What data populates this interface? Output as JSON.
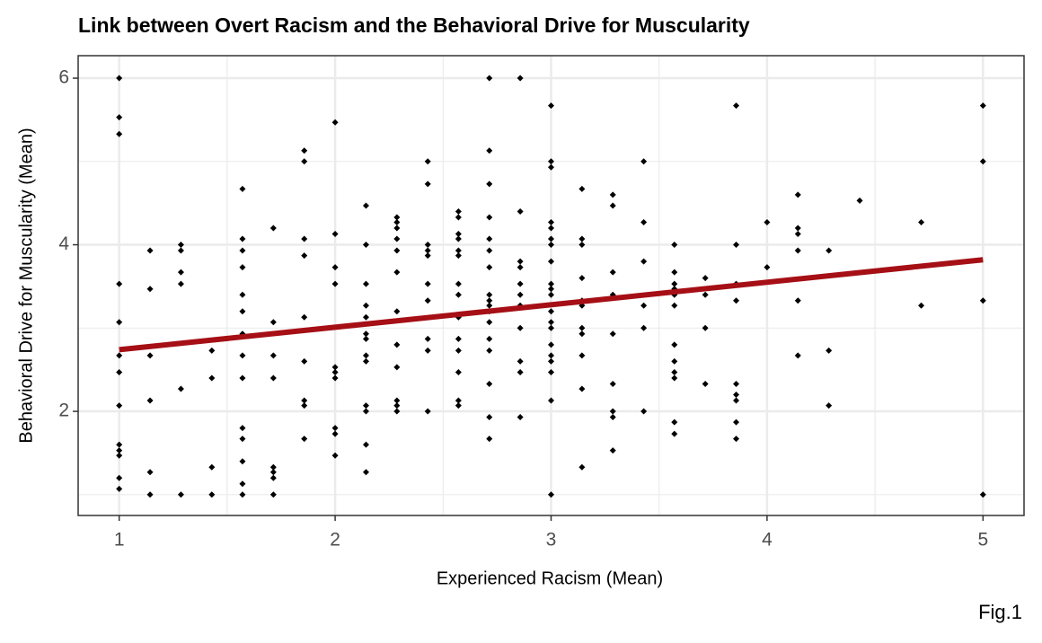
{
  "chart_data": {
    "type": "scatter",
    "title": "Link between Overt Racism and the Behavioral Drive for Muscularity",
    "x_label": "Experienced Racism (Mean)",
    "y_label": "Behavioral Drive for Muscularity (Mean)",
    "caption": "Fig.1",
    "xlim": [
      0.81,
      5.19
    ],
    "ylim": [
      0.75,
      6.27
    ],
    "xticks": [
      1,
      2,
      3,
      4,
      5
    ],
    "yticks": [
      2,
      4,
      6
    ],
    "xminor": [
      1.5,
      2.5,
      3.5,
      4.5
    ],
    "yminor": [
      1,
      3,
      5
    ],
    "grid": true,
    "color": "#000000",
    "x": [
      1,
      1,
      1,
      1,
      1,
      1,
      1,
      1,
      1,
      1,
      1,
      1,
      1,
      1.143,
      1.143,
      1.143,
      1.143,
      1.143,
      1.143,
      1.286,
      1.286,
      1.286,
      1.286,
      1.286,
      1.286,
      1.429,
      1.429,
      1.429,
      1.429,
      1.571,
      1.571,
      1.571,
      1.571,
      1.571,
      1.571,
      1.571,
      1.571,
      1.571,
      1.571,
      1.571,
      1.571,
      1.571,
      1.571,
      1.714,
      1.714,
      1.714,
      1.714,
      1.714,
      1.714,
      1.714,
      1.714,
      1.857,
      1.857,
      1.857,
      1.857,
      1.857,
      1.857,
      1.857,
      1.857,
      1.857,
      2,
      2,
      2,
      2,
      2,
      2,
      2,
      2,
      2,
      2,
      2.143,
      2.143,
      2.143,
      2.143,
      2.143,
      2.143,
      2.143,
      2.143,
      2.143,
      2.143,
      2.143,
      2.143,
      2.143,
      2.286,
      2.286,
      2.286,
      2.286,
      2.286,
      2.286,
      2.286,
      2.286,
      2.286,
      2.286,
      2.286,
      2.286,
      2.429,
      2.429,
      2.429,
      2.429,
      2.429,
      2.429,
      2.429,
      2.429,
      2.429,
      2.429,
      2.571,
      2.571,
      2.571,
      2.571,
      2.571,
      2.571,
      2.571,
      2.571,
      2.571,
      2.571,
      2.571,
      2.571,
      2.571,
      2.571,
      2.714,
      2.714,
      2.714,
      2.714,
      2.714,
      2.714,
      2.714,
      2.714,
      2.714,
      2.714,
      2.714,
      2.714,
      2.714,
      2.714,
      2.714,
      2.714,
      2.714,
      2.857,
      2.857,
      2.857,
      2.857,
      2.857,
      2.857,
      2.857,
      2.857,
      2.857,
      2.857,
      2.857,
      3,
      3,
      3,
      3,
      3,
      3,
      3,
      3,
      3,
      3,
      3,
      3,
      3,
      3,
      3,
      3,
      3,
      3,
      3,
      3,
      3.143,
      3.143,
      3.143,
      3.143,
      3.143,
      3.143,
      3.143,
      3.143,
      3.143,
      3.143,
      3.143,
      3.286,
      3.286,
      3.286,
      3.286,
      3.286,
      3.286,
      3.286,
      3.286,
      3.286,
      3.429,
      3.429,
      3.429,
      3.429,
      3.429,
      3.429,
      3.571,
      3.571,
      3.571,
      3.571,
      3.571,
      3.571,
      3.571,
      3.571,
      3.571,
      3.571,
      3.571,
      3.571,
      3.714,
      3.714,
      3.714,
      3.714,
      3.857,
      3.857,
      3.857,
      3.857,
      3.857,
      3.857,
      3.857,
      3.857,
      3.857,
      4,
      4,
      4.143,
      4.143,
      4.143,
      4.143,
      4.143,
      4.143,
      4.286,
      4.286,
      4.286,
      4.429,
      4.714,
      4.714,
      5,
      5,
      5,
      5
    ],
    "values": [
      6,
      5.53,
      5.33,
      3.53,
      3.07,
      2.67,
      2.47,
      2.07,
      1.6,
      1.53,
      1.47,
      1.2,
      1.07,
      3.93,
      3.47,
      2.67,
      2.13,
      1.27,
      1,
      4,
      3.93,
      3.67,
      3.53,
      2.27,
      1,
      2.73,
      2.4,
      1.33,
      1,
      4.67,
      4.07,
      3.93,
      3.73,
      3.4,
      3.2,
      2.93,
      2.67,
      2.4,
      1.8,
      1.67,
      1.4,
      1.13,
      1,
      4.2,
      3.07,
      2.67,
      2.4,
      1.33,
      1.27,
      1.2,
      1,
      5.13,
      5,
      4.07,
      3.87,
      3.13,
      2.6,
      2.13,
      2.07,
      1.67,
      5.47,
      4.13,
      3.73,
      3.53,
      2.53,
      2.47,
      2.4,
      1.8,
      1.73,
      1.47,
      4.47,
      4,
      3.53,
      3.27,
      3.13,
      2.93,
      2.87,
      2.67,
      2.6,
      2.07,
      2,
      1.6,
      1.27,
      4.33,
      4.27,
      4.2,
      4.07,
      3.93,
      3.67,
      3.2,
      2.8,
      2.53,
      2.13,
      2.07,
      2,
      5,
      4.73,
      4,
      3.93,
      3.87,
      3.53,
      3.33,
      2.87,
      2.73,
      2,
      4.4,
      4.33,
      4.13,
      4.07,
      3.93,
      3.87,
      3.53,
      3.4,
      3.13,
      2.87,
      2.73,
      2.47,
      2.13,
      2.07,
      6,
      5.13,
      4.73,
      4.33,
      4.07,
      3.93,
      3.73,
      3.4,
      3.33,
      3.27,
      3.2,
      3.07,
      2.87,
      2.73,
      2.33,
      1.93,
      1.67,
      6,
      4.4,
      3.8,
      3.73,
      3.53,
      3.4,
      3.27,
      3,
      2.6,
      2.47,
      1.93,
      5.67,
      5,
      4.93,
      4.27,
      4.2,
      4.07,
      4,
      3.8,
      3.53,
      3.47,
      3.4,
      3.2,
      3.07,
      3,
      2.8,
      2.67,
      2.6,
      2.47,
      2.13,
      1,
      4.67,
      4.07,
      4,
      3.6,
      3.33,
      3.27,
      3,
      2.93,
      2.67,
      2.27,
      1.33,
      4.6,
      4.47,
      3.67,
      3.4,
      2.93,
      2.33,
      2,
      1.93,
      1.53,
      5,
      4.27,
      3.8,
      3.27,
      3,
      2,
      4,
      3.67,
      3.53,
      3.47,
      3.4,
      3.27,
      2.8,
      2.6,
      2.47,
      2.4,
      1.87,
      1.73,
      3.6,
      3.4,
      3,
      2.33,
      5.67,
      4,
      3.53,
      3.33,
      2.33,
      2.2,
      2.13,
      1.87,
      1.67,
      4.27,
      3.73,
      4.6,
      4.2,
      4.13,
      3.93,
      3.33,
      2.67,
      3.93,
      2.73,
      2.07,
      4.53,
      4.27,
      3.27,
      5.67,
      5,
      3.33,
      1
    ],
    "trend": {
      "x": [
        1,
        5
      ],
      "values": [
        2.74,
        3.82
      ],
      "color": "#a50f15"
    }
  }
}
